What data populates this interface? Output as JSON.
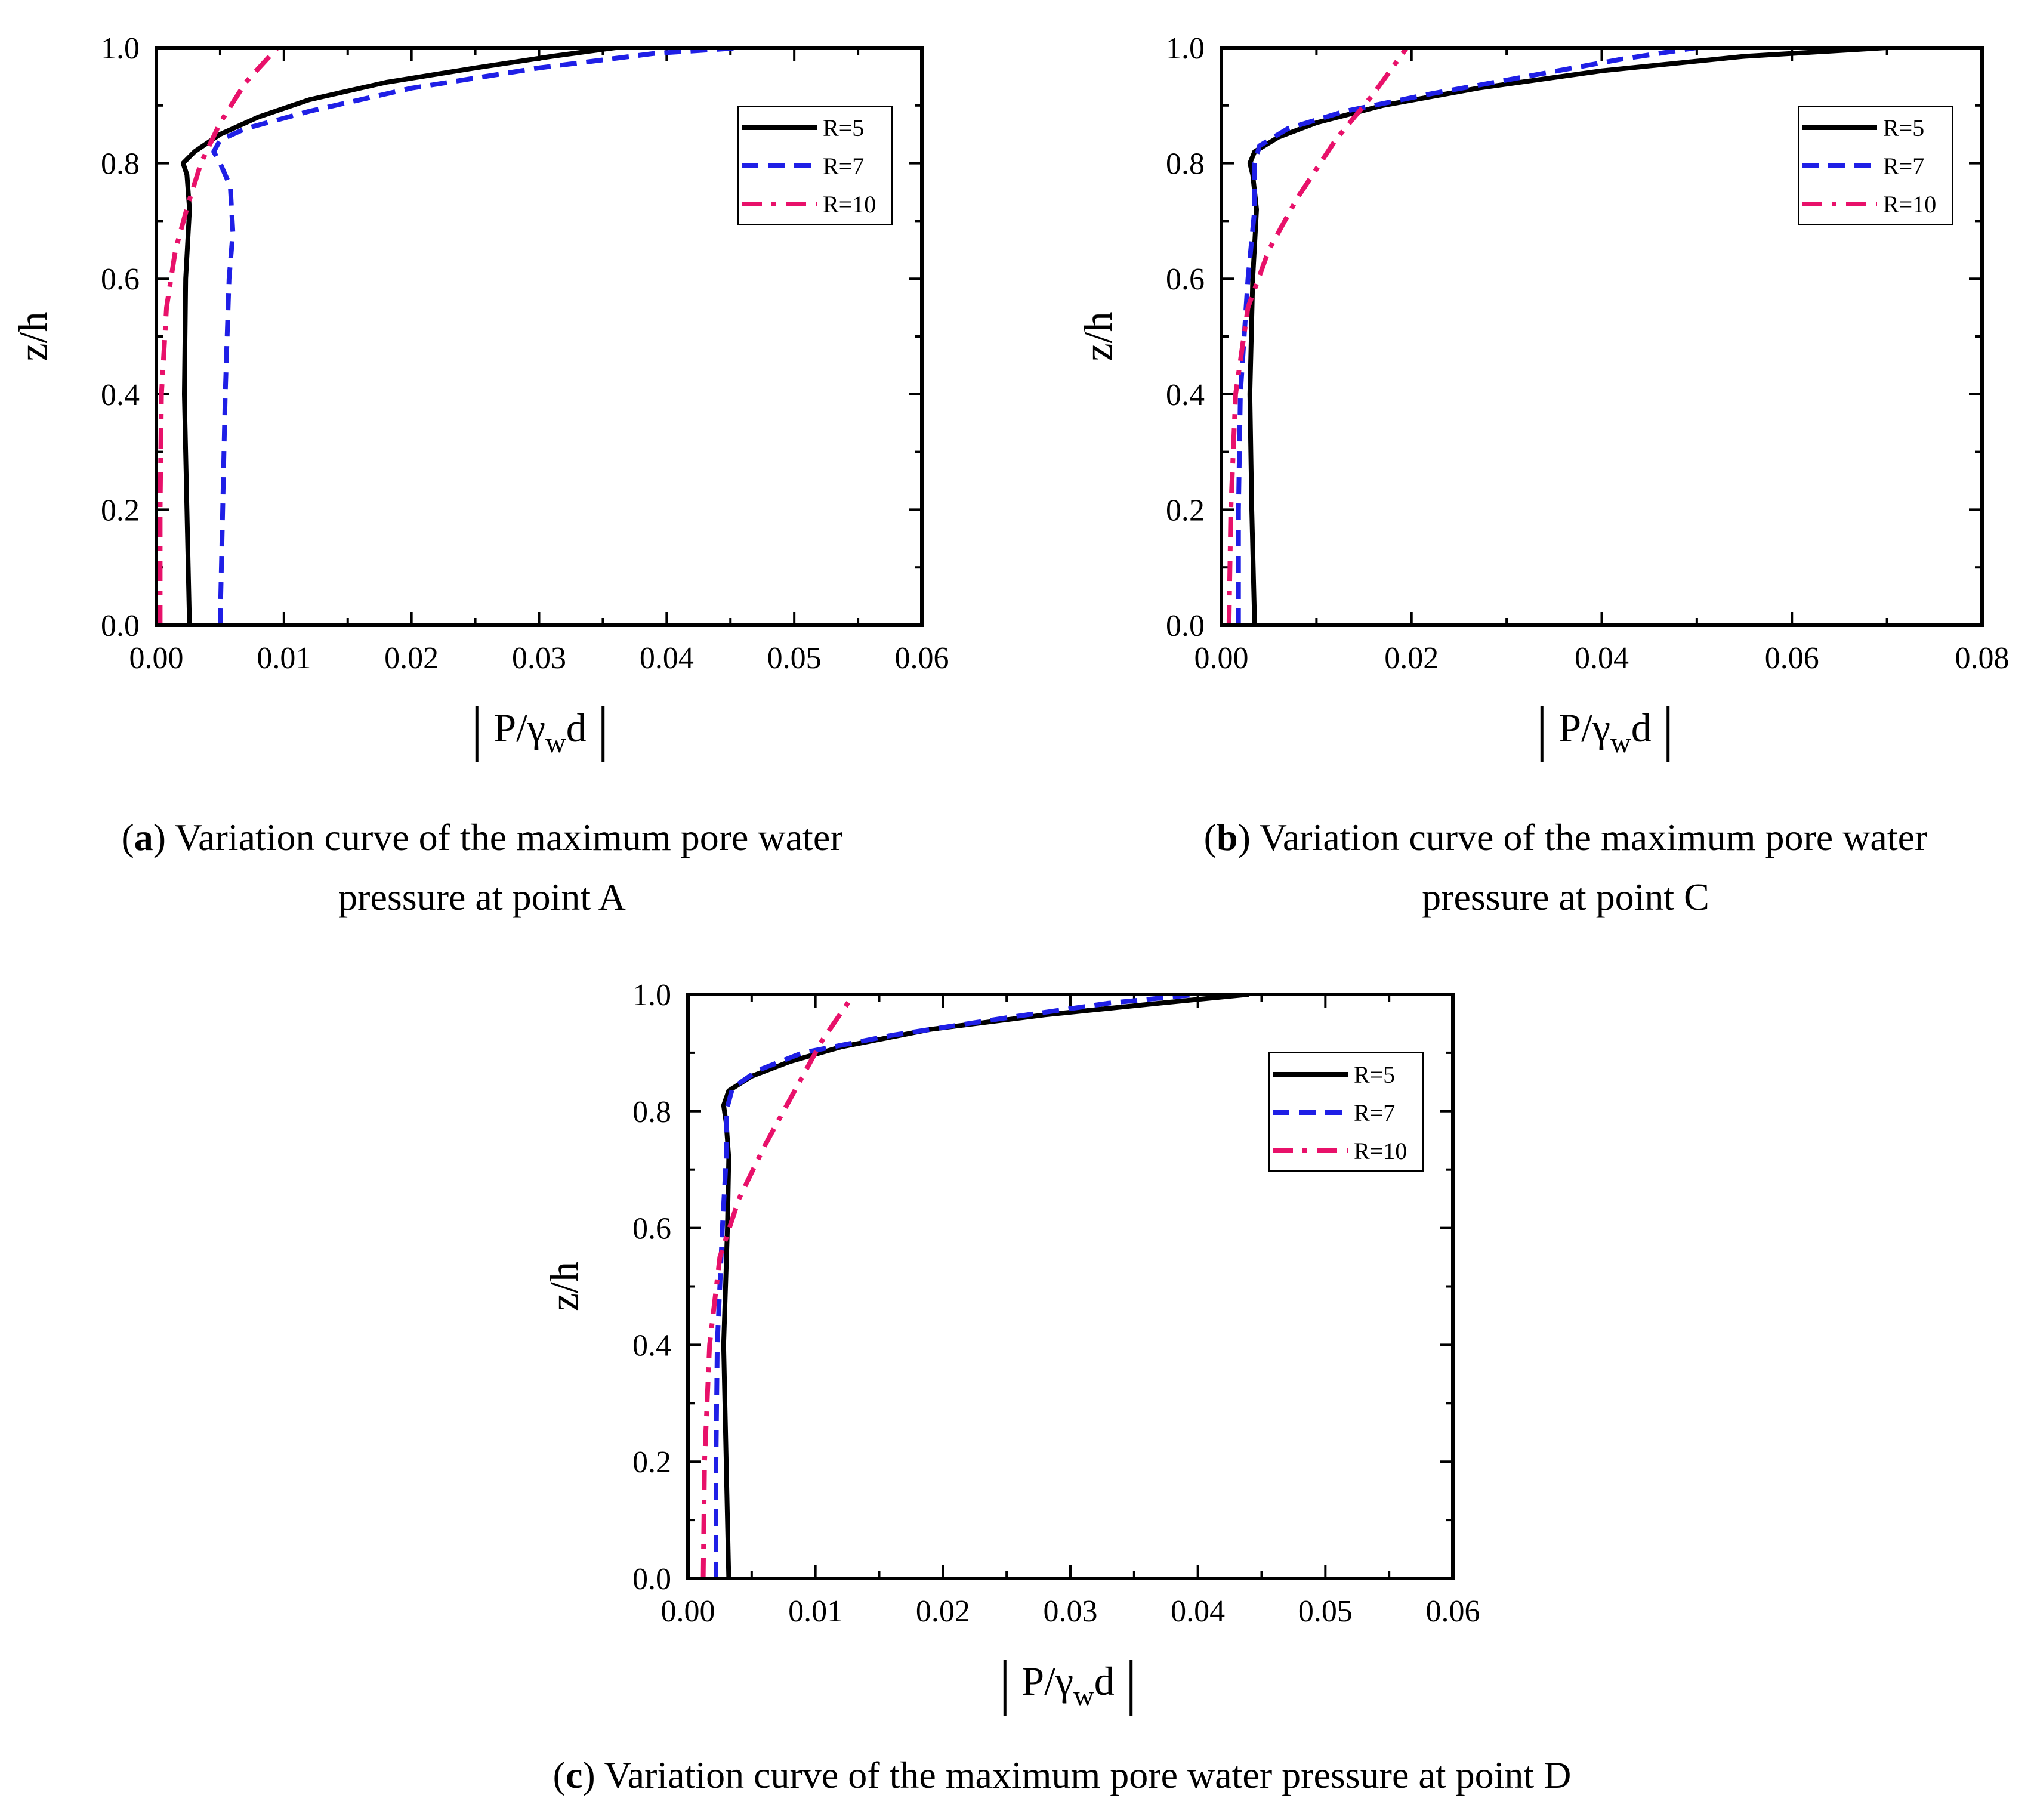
{
  "chart_data": [
    {
      "type": "line",
      "caption_letter": "a",
      "caption_line1": ") Variation curve of the maximum pore water",
      "caption_line2": "pressure at point A",
      "xlabel_prefix": "P/γ",
      "xlabel_sub": "w",
      "xlabel_suffix": "d",
      "ylabel": "z/h",
      "xlim": [
        0,
        0.06
      ],
      "ylim": [
        0,
        1.0
      ],
      "xticks": [
        "0.00",
        "0.01",
        "0.02",
        "0.03",
        "0.04",
        "0.05",
        "0.06"
      ],
      "yticks": [
        "0.0",
        "0.2",
        "0.4",
        "0.6",
        "0.8",
        "1.0"
      ],
      "legend_position": "top-right",
      "series": [
        {
          "name": "R=5",
          "color": "#000000",
          "style": "solid",
          "points": [
            [
              0.0026,
              0.0
            ],
            [
              0.0024,
              0.2
            ],
            [
              0.0022,
              0.4
            ],
            [
              0.0023,
              0.6
            ],
            [
              0.0026,
              0.72
            ],
            [
              0.0024,
              0.78
            ],
            [
              0.0021,
              0.8
            ],
            [
              0.003,
              0.82
            ],
            [
              0.005,
              0.85
            ],
            [
              0.008,
              0.88
            ],
            [
              0.012,
              0.91
            ],
            [
              0.018,
              0.94
            ],
            [
              0.025,
              0.965
            ],
            [
              0.031,
              0.985
            ],
            [
              0.036,
              1.0
            ]
          ]
        },
        {
          "name": "R=7",
          "color": "#1f1fe6",
          "style": "dash",
          "points": [
            [
              0.005,
              0.0
            ],
            [
              0.0052,
              0.2
            ],
            [
              0.0054,
              0.4
            ],
            [
              0.0057,
              0.6
            ],
            [
              0.006,
              0.68
            ],
            [
              0.0058,
              0.76
            ],
            [
              0.005,
              0.8
            ],
            [
              0.0045,
              0.82
            ],
            [
              0.005,
              0.84
            ],
            [
              0.007,
              0.86
            ],
            [
              0.012,
              0.89
            ],
            [
              0.02,
              0.93
            ],
            [
              0.03,
              0.965
            ],
            [
              0.039,
              0.99
            ],
            [
              0.046,
              1.0
            ]
          ]
        },
        {
          "name": "R=10",
          "color": "#e8116a",
          "style": "dashdot",
          "points": [
            [
              0.0003,
              0.0
            ],
            [
              0.0003,
              0.2
            ],
            [
              0.0004,
              0.4
            ],
            [
              0.0008,
              0.55
            ],
            [
              0.0015,
              0.65
            ],
            [
              0.0025,
              0.73
            ],
            [
              0.0035,
              0.8
            ],
            [
              0.005,
              0.87
            ],
            [
              0.007,
              0.94
            ],
            [
              0.0095,
              1.0
            ]
          ]
        }
      ]
    },
    {
      "type": "line",
      "caption_letter": "b",
      "caption_line1": ") Variation curve of the maximum pore water",
      "caption_line2": "pressure at point C",
      "xlabel_prefix": "P/γ",
      "xlabel_sub": "w",
      "xlabel_suffix": "d",
      "ylabel": "z/h",
      "xlim": [
        0,
        0.08
      ],
      "ylim": [
        0,
        1.0
      ],
      "xticks": [
        "0.00",
        "0.02",
        "0.04",
        "0.06",
        "0.08"
      ],
      "yticks": [
        "0.0",
        "0.2",
        "0.4",
        "0.6",
        "0.8",
        "1.0"
      ],
      "legend_position": "top-right",
      "series": [
        {
          "name": "R=5",
          "color": "#000000",
          "style": "solid",
          "points": [
            [
              0.0035,
              0.0
            ],
            [
              0.0032,
              0.2
            ],
            [
              0.003,
              0.4
            ],
            [
              0.0033,
              0.6
            ],
            [
              0.0037,
              0.72
            ],
            [
              0.0033,
              0.78
            ],
            [
              0.003,
              0.8
            ],
            [
              0.0035,
              0.82
            ],
            [
              0.006,
              0.845
            ],
            [
              0.01,
              0.87
            ],
            [
              0.017,
              0.9
            ],
            [
              0.027,
              0.93
            ],
            [
              0.04,
              0.96
            ],
            [
              0.055,
              0.985
            ],
            [
              0.07,
              1.0
            ]
          ]
        },
        {
          "name": "R=7",
          "color": "#1f1fe6",
          "style": "dash",
          "points": [
            [
              0.0018,
              0.0
            ],
            [
              0.0018,
              0.2
            ],
            [
              0.002,
              0.4
            ],
            [
              0.0028,
              0.6
            ],
            [
              0.0035,
              0.72
            ],
            [
              0.0035,
              0.8
            ],
            [
              0.004,
              0.83
            ],
            [
              0.007,
              0.86
            ],
            [
              0.013,
              0.89
            ],
            [
              0.022,
              0.92
            ],
            [
              0.032,
              0.95
            ],
            [
              0.042,
              0.98
            ],
            [
              0.05,
              1.0
            ]
          ]
        },
        {
          "name": "R=10",
          "color": "#e8116a",
          "style": "dashdot",
          "points": [
            [
              0.0008,
              0.0
            ],
            [
              0.001,
              0.2
            ],
            [
              0.0015,
              0.4
            ],
            [
              0.0028,
              0.55
            ],
            [
              0.005,
              0.65
            ],
            [
              0.008,
              0.74
            ],
            [
              0.012,
              0.84
            ],
            [
              0.016,
              0.92
            ],
            [
              0.0195,
              1.0
            ]
          ]
        }
      ]
    },
    {
      "type": "line",
      "caption_letter": "c",
      "caption_line1": ") Variation curve of the maximum pore water pressure at point D",
      "caption_line2": "",
      "xlabel_prefix": "P/γ",
      "xlabel_sub": "w",
      "xlabel_suffix": "d",
      "ylabel": "z/h",
      "xlim": [
        0,
        0.06
      ],
      "ylim": [
        0,
        1.0
      ],
      "xticks": [
        "0.00",
        "0.01",
        "0.02",
        "0.03",
        "0.04",
        "0.05",
        "0.06"
      ],
      "yticks": [
        "0.0",
        "0.2",
        "0.4",
        "0.6",
        "0.8",
        "1.0"
      ],
      "legend_position": "top-right",
      "series": [
        {
          "name": "R=5",
          "color": "#000000",
          "style": "solid",
          "points": [
            [
              0.0032,
              0.0
            ],
            [
              0.003,
              0.2
            ],
            [
              0.0028,
              0.4
            ],
            [
              0.0031,
              0.6
            ],
            [
              0.0032,
              0.72
            ],
            [
              0.003,
              0.78
            ],
            [
              0.0028,
              0.81
            ],
            [
              0.0032,
              0.835
            ],
            [
              0.005,
              0.86
            ],
            [
              0.008,
              0.885
            ],
            [
              0.012,
              0.91
            ],
            [
              0.019,
              0.94
            ],
            [
              0.028,
              0.965
            ],
            [
              0.037,
              0.985
            ],
            [
              0.044,
              1.0
            ]
          ]
        },
        {
          "name": "R=7",
          "color": "#1f1fe6",
          "style": "dash",
          "points": [
            [
              0.0022,
              0.0
            ],
            [
              0.0022,
              0.2
            ],
            [
              0.0023,
              0.4
            ],
            [
              0.0027,
              0.6
            ],
            [
              0.003,
              0.72
            ],
            [
              0.003,
              0.8
            ],
            [
              0.0035,
              0.84
            ],
            [
              0.0055,
              0.87
            ],
            [
              0.009,
              0.9
            ],
            [
              0.016,
              0.93
            ],
            [
              0.025,
              0.96
            ],
            [
              0.033,
              0.985
            ],
            [
              0.04,
              1.0
            ]
          ]
        },
        {
          "name": "R=10",
          "color": "#e8116a",
          "style": "dashdot",
          "points": [
            [
              0.0012,
              0.0
            ],
            [
              0.0013,
              0.2
            ],
            [
              0.0017,
              0.4
            ],
            [
              0.0025,
              0.55
            ],
            [
              0.004,
              0.65
            ],
            [
              0.006,
              0.74
            ],
            [
              0.0085,
              0.84
            ],
            [
              0.0105,
              0.92
            ],
            [
              0.013,
              1.0
            ]
          ]
        }
      ]
    }
  ]
}
